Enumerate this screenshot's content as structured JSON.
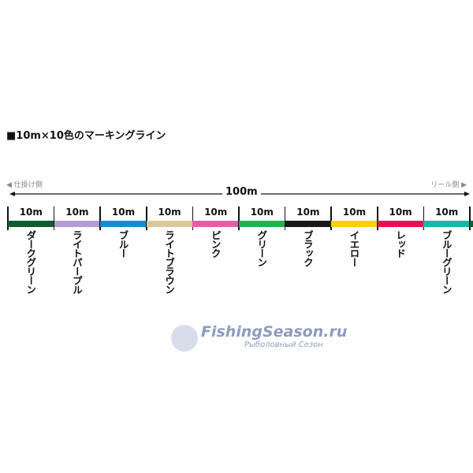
{
  "title": "■10m×10色のマーキングライン",
  "left_side": "◀ 仕掛け側",
  "right_side": "リール側 ▶",
  "total": "100m",
  "segments": [
    {
      "length": "10m",
      "name": "ダークグリーン",
      "color": "#0e5b30"
    },
    {
      "length": "10m",
      "name": "ライトパープル",
      "color": "#b39bd6"
    },
    {
      "length": "10m",
      "name": "ブルー",
      "color": "#1a8ccc"
    },
    {
      "length": "10m",
      "name": "ライトブラウン",
      "color": "#d9c99a"
    },
    {
      "length": "10m",
      "name": "ピンク",
      "color": "#e060a8"
    },
    {
      "length": "10m",
      "name": "グリーン",
      "color": "#22b24c"
    },
    {
      "length": "10m",
      "name": "ブラック",
      "color": "#1a1a1a"
    },
    {
      "length": "10m",
      "name": "イエロー",
      "color": "#ffd000"
    },
    {
      "length": "10m",
      "name": "レッド",
      "color": "#ec0f56"
    },
    {
      "length": "10m",
      "name": "ブルーグリーン",
      "color": "#16b8a8"
    }
  ],
  "watermark": {
    "line1": "FishingSeason.ru",
    "line2": "Рыболовный Сезон"
  }
}
